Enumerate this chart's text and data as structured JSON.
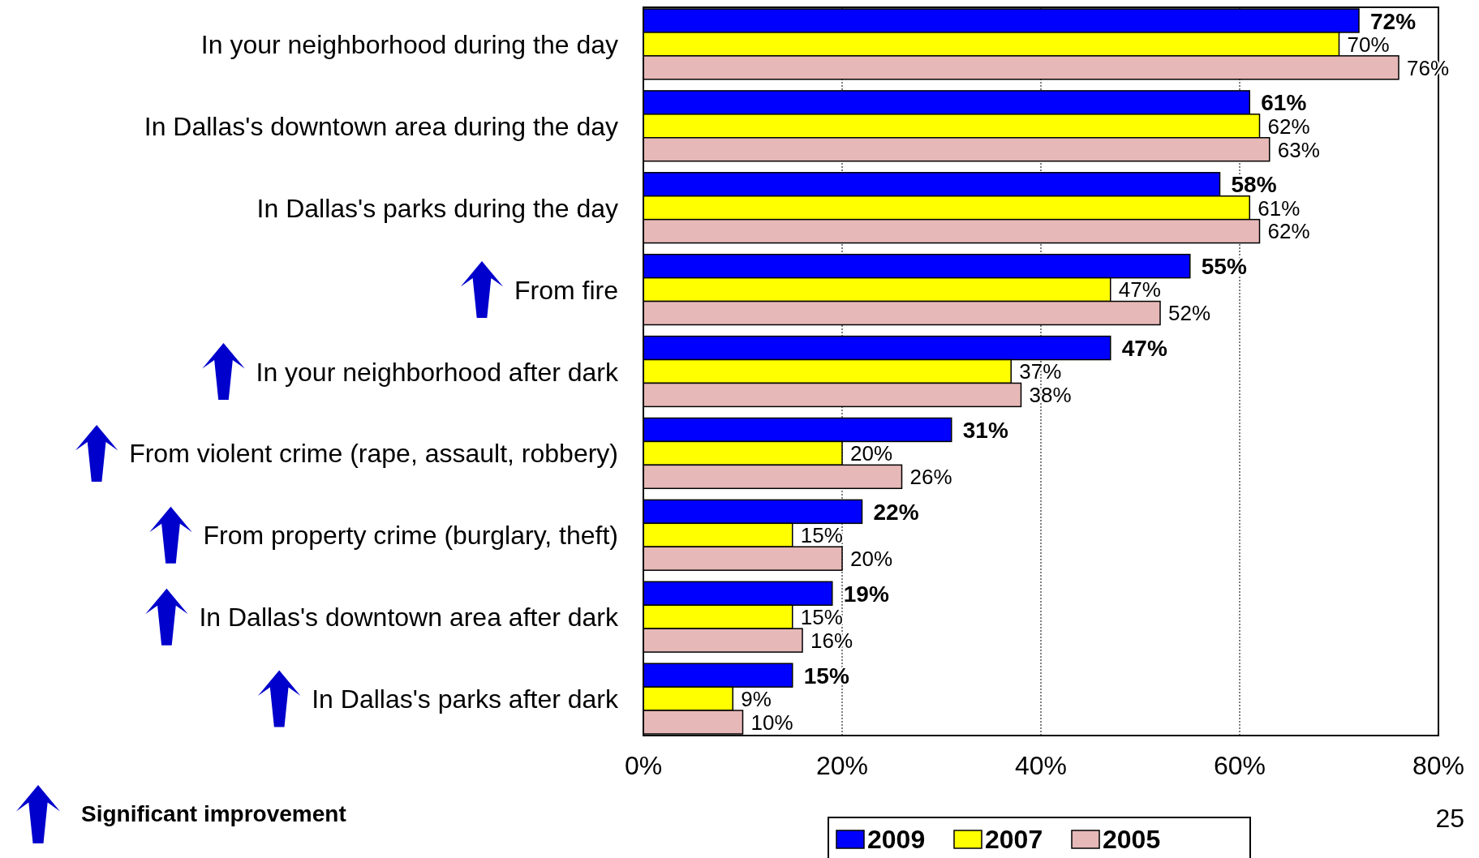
{
  "chart_data": {
    "type": "bar",
    "orientation": "horizontal",
    "categories": [
      "In your neighborhood during the day",
      "In Dallas's downtown area during the day",
      "In Dallas's parks during the day",
      "From fire",
      "In your neighborhood after dark",
      "From violent crime (rape, assault, robbery)",
      "From property crime (burglary, theft)",
      "In Dallas's downtown area after dark",
      "In Dallas's parks after dark"
    ],
    "series": [
      {
        "name": "2009",
        "color": "#0000ff",
        "values": [
          72,
          61,
          58,
          55,
          47,
          31,
          22,
          19,
          15
        ],
        "value_labels": [
          "72%",
          "61%",
          "58%",
          "55%",
          "47%",
          "31%",
          "22%",
          "19%",
          "15%"
        ]
      },
      {
        "name": "2007",
        "color": "#ffff00",
        "values": [
          70,
          62,
          61,
          47,
          37,
          20,
          15,
          15,
          9
        ],
        "value_labels": [
          "70%",
          "62%",
          "61%",
          "47%",
          "37%",
          "20%",
          "15%",
          "15%",
          "9%"
        ]
      },
      {
        "name": "2005",
        "color": "#e6b8b7",
        "values": [
          76,
          63,
          62,
          52,
          38,
          26,
          20,
          16,
          10
        ],
        "value_labels": [
          "76%",
          "63%",
          "62%",
          "52%",
          "38%",
          "26%",
          "20%",
          "16%",
          "10%"
        ]
      }
    ],
    "xlim": [
      0,
      80
    ],
    "xticks": [
      {
        "value": 0,
        "label": "0%"
      },
      {
        "value": 20,
        "label": "20%"
      },
      {
        "value": 40,
        "label": "40%"
      },
      {
        "value": 60,
        "label": "60%"
      },
      {
        "value": 80,
        "label": "80%"
      }
    ],
    "grid": "x",
    "legend": "bottom",
    "annotations": [
      "Significant improvement",
      "25"
    ]
  }
}
